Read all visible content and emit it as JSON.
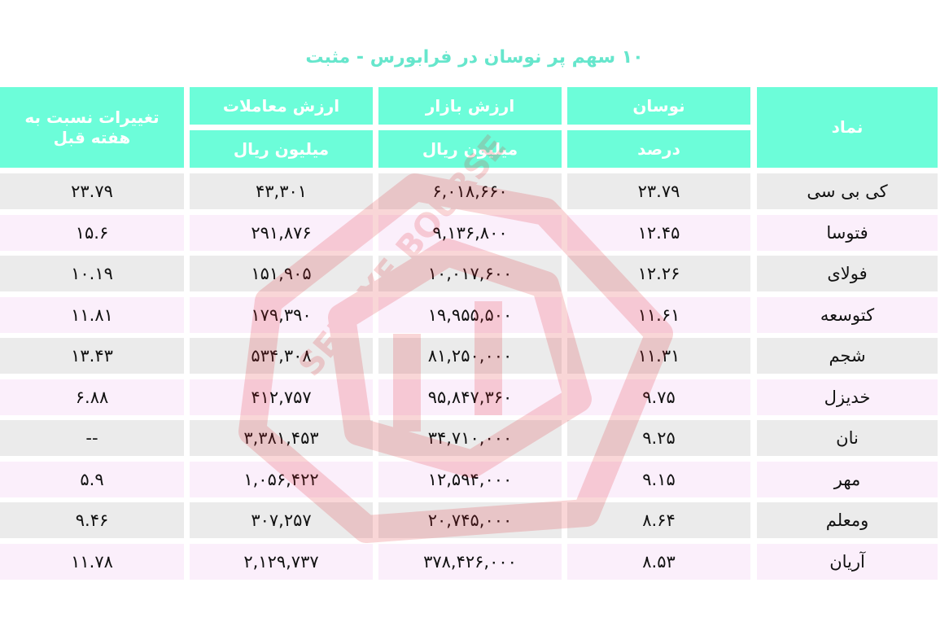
{
  "title": "۱۰ سهم پر نوسان در فرابورس - مثبت",
  "colors": {
    "header_bg": "#6cfdd9",
    "title": "#66e6cc",
    "row_odd": "#ebebeb",
    "row_even": "#fbeffb",
    "watermark": "#e0202a"
  },
  "watermark_text": "SEDAYE BOURSE",
  "headers": {
    "symbol": "نماد",
    "volatility": "نوسان",
    "volatility_unit": "درصد",
    "market_value": "ارزش بازار",
    "market_value_unit": "میلیون ریال",
    "trade_value": "ارزش معاملات",
    "trade_value_unit": "میلیون ریال",
    "weekly_change": "تغییرات نسبت به هفته قبل"
  },
  "rows": [
    {
      "symbol": "کی بی سی",
      "volatility": "۲۳.۷۹",
      "market_value": "۶,۰۱۸,۶۶۰",
      "trade_value": "۴۳,۳۰۱",
      "weekly_change": "۲۳.۷۹"
    },
    {
      "symbol": "فتوسا",
      "volatility": "۱۲.۴۵",
      "market_value": "۹,۱۳۶,۸۰۰",
      "trade_value": "۲۹۱,۸۷۶",
      "weekly_change": "۱۵.۶"
    },
    {
      "symbol": "فولای",
      "volatility": "۱۲.۲۶",
      "market_value": "۱۰,۰۱۷,۶۰۰",
      "trade_value": "۱۵۱,۹۰۵",
      "weekly_change": "۱۰.۱۹"
    },
    {
      "symbol": "کتوسعه",
      "volatility": "۱۱.۶۱",
      "market_value": "۱۹,۹۵۵,۵۰۰",
      "trade_value": "۱۷۹,۳۹۰",
      "weekly_change": "۱۱.۸۱"
    },
    {
      "symbol": "شجم",
      "volatility": "۱۱.۳۱",
      "market_value": "۸۱,۲۵۰,۰۰۰",
      "trade_value": "۵۳۴,۳۰۸",
      "weekly_change": "۱۳.۴۳"
    },
    {
      "symbol": "خدیزل",
      "volatility": "۹.۷۵",
      "market_value": "۹۵,۸۴۷,۳۶۰",
      "trade_value": "۴۱۲,۷۵۷",
      "weekly_change": "۶.۸۸"
    },
    {
      "symbol": "نان",
      "volatility": "۹.۲۵",
      "market_value": "۳۴,۷۱۰,۰۰۰",
      "trade_value": "۳,۳۸۱,۴۵۳",
      "weekly_change": "--"
    },
    {
      "symbol": "مهر",
      "volatility": "۹.۱۵",
      "market_value": "۱۲,۵۹۴,۰۰۰",
      "trade_value": "۱,۰۵۶,۴۲۲",
      "weekly_change": "۵.۹"
    },
    {
      "symbol": "ومعلم",
      "volatility": "۸.۶۴",
      "market_value": "۲۰,۷۴۵,۰۰۰",
      "trade_value": "۳۰۷,۲۵۷",
      "weekly_change": "۹.۴۶"
    },
    {
      "symbol": "آریان",
      "volatility": "۸.۵۳",
      "market_value": "۳۷۸,۴۲۶,۰۰۰",
      "trade_value": "۲,۱۲۹,۷۳۷",
      "weekly_change": "۱۱.۷۸"
    }
  ]
}
